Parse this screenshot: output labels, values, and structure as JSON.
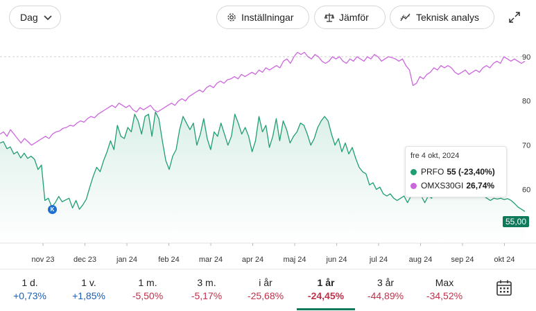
{
  "toolbar": {
    "period_label": "Dag",
    "settings_label": "Inställningar",
    "compare_label": "Jämför",
    "technical_label": "Teknisk analys"
  },
  "colors": {
    "prfo_line": "#1f9e6f",
    "omx_line": "#cc66dd",
    "badge": "#0e7a5a",
    "positive": "#1a5fb4",
    "negative": "#c0304a"
  },
  "chart_data": {
    "type": "line",
    "x_tick_labels": [
      "nov 23",
      "dec 23",
      "jan 24",
      "feb 24",
      "mar 24",
      "apr 24",
      "maj 24",
      "jun 24",
      "jul 24",
      "aug 24",
      "sep 24",
      "okt 24"
    ],
    "y_tick_labels": [
      "90",
      "80",
      "70",
      "60"
    ],
    "ylim": [
      48,
      95
    ],
    "reference_line": 90,
    "series": [
      {
        "name": "PRFO",
        "values": [
          70.5,
          70.8,
          69.2,
          69.6,
          68.0,
          68.5,
          67.1,
          68.2,
          67.0,
          67.5,
          66.8,
          64.5,
          65.5,
          57.5,
          58.0,
          56.0,
          57.0,
          58.4,
          57.2,
          57.6,
          58.0,
          55.8,
          57.5,
          55.5,
          56.5,
          57.8,
          60.5,
          63.0,
          65.0,
          64.0,
          66.5,
          68.5,
          71.0,
          69.0,
          74.5,
          72.0,
          71.5,
          74.0,
          73.0,
          77.0,
          75.5,
          72.5,
          76.5,
          77.0,
          72.0,
          77.5,
          76.0,
          71.0,
          66.5,
          64.5,
          67.5,
          69.0,
          73.5,
          76.5,
          75.0,
          73.5,
          75.0,
          70.0,
          72.5,
          76.0,
          71.5,
          69.0,
          73.0,
          72.0,
          75.0,
          72.5,
          70.0,
          72.0,
          77.0,
          75.0,
          72.5,
          74.0,
          72.0,
          68.5,
          71.0,
          76.5,
          73.0,
          74.5,
          69.5,
          72.0,
          76.0,
          71.0,
          75.5,
          73.5,
          70.5,
          72.0,
          73.0,
          75.0,
          74.5,
          72.5,
          70.0,
          71.5,
          74.0,
          75.5,
          76.5,
          75.5,
          72.5,
          70.0,
          71.5,
          68.5,
          70.5,
          68.0,
          69.5,
          67.0,
          65.0,
          64.0,
          63.5,
          61.0,
          61.5,
          60.0,
          60.5,
          59.0,
          58.5,
          59.0,
          58.0,
          57.5,
          58.0,
          58.5,
          57.0,
          58.5,
          59.0,
          61.0,
          58.5,
          57.0,
          58.5,
          58.0,
          60.0,
          62.5,
          61.0,
          66.5,
          65.0,
          63.0,
          61.0,
          60.5,
          62.0,
          62.5,
          61.0,
          62.0,
          60.5,
          60.0,
          58.5,
          58.0,
          57.5,
          58.0,
          57.8,
          58.0,
          57.7,
          57.9,
          57.5,
          56.8,
          56.0,
          55.5,
          55.0
        ]
      },
      {
        "name": "OMXS30GI",
        "values": [
          72.5,
          73.0,
          72.0,
          73.5,
          72.5,
          71.5,
          70.5,
          71.5,
          70.8,
          70.0,
          70.5,
          71.0,
          71.5,
          72.0,
          71.5,
          72.5,
          73.0,
          73.2,
          73.8,
          74.0,
          74.5,
          74.3,
          75.0,
          75.5,
          75.2,
          76.0,
          76.5,
          76.2,
          77.0,
          77.5,
          78.0,
          78.5,
          79.0,
          78.5,
          79.5,
          79.0,
          78.5,
          79.0,
          78.0,
          77.5,
          78.5,
          78.0,
          78.5,
          79.0,
          78.0,
          77.5,
          78.0,
          78.5,
          79.0,
          79.5,
          79.0,
          80.0,
          80.5,
          80.0,
          81.0,
          81.5,
          82.0,
          82.5,
          82.0,
          83.0,
          83.5,
          83.0,
          84.0,
          84.5,
          84.0,
          84.8,
          85.0,
          85.5,
          85.0,
          86.0,
          85.5,
          86.0,
          86.5,
          86.0,
          87.0,
          86.5,
          87.5,
          87.0,
          87.5,
          88.0,
          87.5,
          89.0,
          89.5,
          88.5,
          90.0,
          91.0,
          90.5,
          91.0,
          90.0,
          89.5,
          90.5,
          90.0,
          89.0,
          88.5,
          89.0,
          90.0,
          89.5,
          90.0,
          89.0,
          88.5,
          89.5,
          89.0,
          90.0,
          89.5,
          89.0,
          90.0,
          89.5,
          90.5,
          90.0,
          89.0,
          89.5,
          90.0,
          89.8,
          89.5,
          89.0,
          89.5,
          88.0,
          87.0,
          83.5,
          84.0,
          85.5,
          85.0,
          86.0,
          86.5,
          87.5,
          87.0,
          88.0,
          87.5,
          88.0,
          87.5,
          86.5,
          86.0,
          86.5,
          87.0,
          86.0,
          86.5,
          87.0,
          86.5,
          87.5,
          88.0,
          87.5,
          88.5,
          89.0,
          88.5,
          90.0,
          89.5,
          89.0,
          89.5,
          89.0,
          88.5,
          89.0
        ]
      }
    ]
  },
  "tooltip": {
    "date": "fre 4 okt, 2024",
    "rows": [
      {
        "name": "PRFO",
        "value": "55 (-23,40%)"
      },
      {
        "name": "OMXS30GI",
        "value": "26,74%"
      }
    ]
  },
  "price_badge": "55,00",
  "marker_label": "K",
  "periods": [
    {
      "label": "1 d.",
      "change": "+0,73%",
      "positive": true,
      "active": false
    },
    {
      "label": "1 v.",
      "change": "+1,85%",
      "positive": true,
      "active": false
    },
    {
      "label": "1 m.",
      "change": "-5,50%",
      "positive": false,
      "active": false
    },
    {
      "label": "3 m.",
      "change": "-5,17%",
      "positive": false,
      "active": false
    },
    {
      "label": "i år",
      "change": "-25,68%",
      "positive": false,
      "active": false
    },
    {
      "label": "1 år",
      "change": "-24,45%",
      "positive": false,
      "active": true
    },
    {
      "label": "3 år",
      "change": "-44,89%",
      "positive": false,
      "active": false
    },
    {
      "label": "Max",
      "change": "-34,52%",
      "positive": false,
      "active": false
    }
  ]
}
